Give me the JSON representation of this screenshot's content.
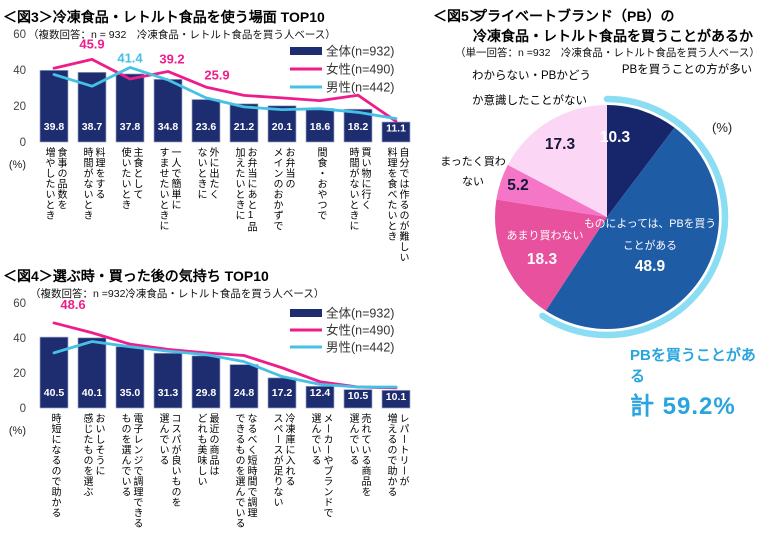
{
  "colors": {
    "navy": "#1E2D6F",
    "female_pink": "#ED1E8C",
    "male_cyan": "#45C1E6",
    "pie": [
      "#17266B",
      "#1E5CA5",
      "#E8519D",
      "#F575C7",
      "#FBD7F5"
    ],
    "highlight_arc": "#8ADDF2",
    "total_cyan": "#2AA4DE"
  },
  "chart_data": [
    {
      "id": "fig3",
      "type": "bar+line",
      "title": "＜図3＞冷凍食品・レトルト食品を使う場面 TOP10",
      "subtitle": "（複数回答：n = 932　冷凍食品・レトルト食品を買う人ベース）",
      "ylabel": "(%)",
      "ylim": [
        0,
        60
      ],
      "yticks": [
        0,
        20,
        40,
        60
      ],
      "legend_position": "top-right",
      "categories": [
        "食事の品数を\n増やしたいとき",
        "料理をする\n時間がないとき",
        "主食として\n使いたいとき",
        "一人で簡単に\nすませたいときに",
        "外に出たく\nないときに",
        "お弁当にあと1品\n加えたいときに",
        "お弁当の\nメインのおかずで",
        "間食・おやつで",
        "買い物に行く\n時間がないときに",
        "自分では作るのが難しい\n料理を食べたいとき"
      ],
      "series": [
        {
          "name": "全体(n=932)",
          "type": "bar",
          "values": [
            39.8,
            38.7,
            37.8,
            34.8,
            23.6,
            21.2,
            20.1,
            18.6,
            18.2,
            11.1
          ]
        },
        {
          "name": "女性(n=490)",
          "type": "line",
          "values": [
            41.0,
            45.9,
            35.0,
            39.2,
            30.5,
            25.9,
            24.5,
            23.0,
            26.0,
            11.5
          ]
        },
        {
          "name": "男性(n=442)",
          "type": "line",
          "values": [
            37.5,
            31.0,
            41.4,
            34.5,
            24.5,
            19.5,
            18.0,
            18.5,
            16.5,
            13.0
          ]
        }
      ],
      "annotations": [
        {
          "text": "45.9",
          "series": "女性",
          "index": 1
        },
        {
          "text": "41.4",
          "series": "男性",
          "index": 2
        },
        {
          "text": "39.2",
          "series": "女性",
          "index": 3
        },
        {
          "text": "25.9",
          "series": "女性",
          "index": 5
        }
      ]
    },
    {
      "id": "fig4",
      "type": "bar+line",
      "title": "＜図4＞選ぶ時・買った後の気持ち TOP10",
      "subtitle": "（複数回答：n =932冷凍食品・レトルト食品を買う人ベース）",
      "ylabel": "(%)",
      "ylim": [
        0,
        60
      ],
      "yticks": [
        0,
        20,
        40,
        60
      ],
      "legend_position": "top-right",
      "categories": [
        "時短になるので助かる",
        "おいしそうに\n感じたものを選ぶ",
        "電子レンジで調理できる\nものを選んでいる",
        "コスパが良いものを\n選んでいる",
        "最近の商品は\nどれも美味しい",
        "なるべく短時間で調理\nできるものを選んでいる",
        "冷凍庫に入れる\nスペースが足りない",
        "メーカーやブランドで\n選んでいる",
        "売れている商品を\n選んでいる",
        "レパートリーが\n増えるので助かる"
      ],
      "series": [
        {
          "name": "全体(n=932)",
          "type": "bar",
          "values": [
            40.5,
            40.1,
            35.0,
            31.3,
            29.8,
            24.8,
            17.2,
            12.4,
            10.5,
            10.1
          ]
        },
        {
          "name": "女性(n=490)",
          "type": "line",
          "values": [
            48.6,
            43.0,
            36.5,
            33.5,
            31.5,
            30.0,
            23.0,
            15.0,
            12.0,
            11.5
          ]
        },
        {
          "name": "男性(n=442)",
          "type": "line",
          "values": [
            31.5,
            38.0,
            35.0,
            32.5,
            30.5,
            26.5,
            18.0,
            13.5,
            12.0,
            12.0
          ]
        }
      ],
      "annotations": [
        {
          "text": "48.6",
          "series": "女性",
          "index": 0
        }
      ]
    },
    {
      "id": "fig5",
      "type": "pie",
      "title_prefix": "＜図5＞",
      "title_line1": "プライベートブランド（PB）の",
      "title_line2": "冷凍食品・レトルト食品を買うことがあるか",
      "subtitle": "（単一回答：n =932　冷凍食品・レトルト食品を買う人ベース）",
      "unit": "(%)",
      "slices": [
        {
          "label": "PBを買うことの方が多い",
          "value": 10.3
        },
        {
          "label": "ものによっては、PBを買うことがある",
          "value": 48.9
        },
        {
          "label": "あまり買わない",
          "value": 18.3
        },
        {
          "label": "まったく買わない",
          "value": 5.2
        },
        {
          "label": "わからない・PBかどうか意識したことがない",
          "value": 17.3
        }
      ],
      "highlight": {
        "label": "PBを買うことがある",
        "total": "計 59.2%",
        "total_value": 59.2
      }
    }
  ]
}
